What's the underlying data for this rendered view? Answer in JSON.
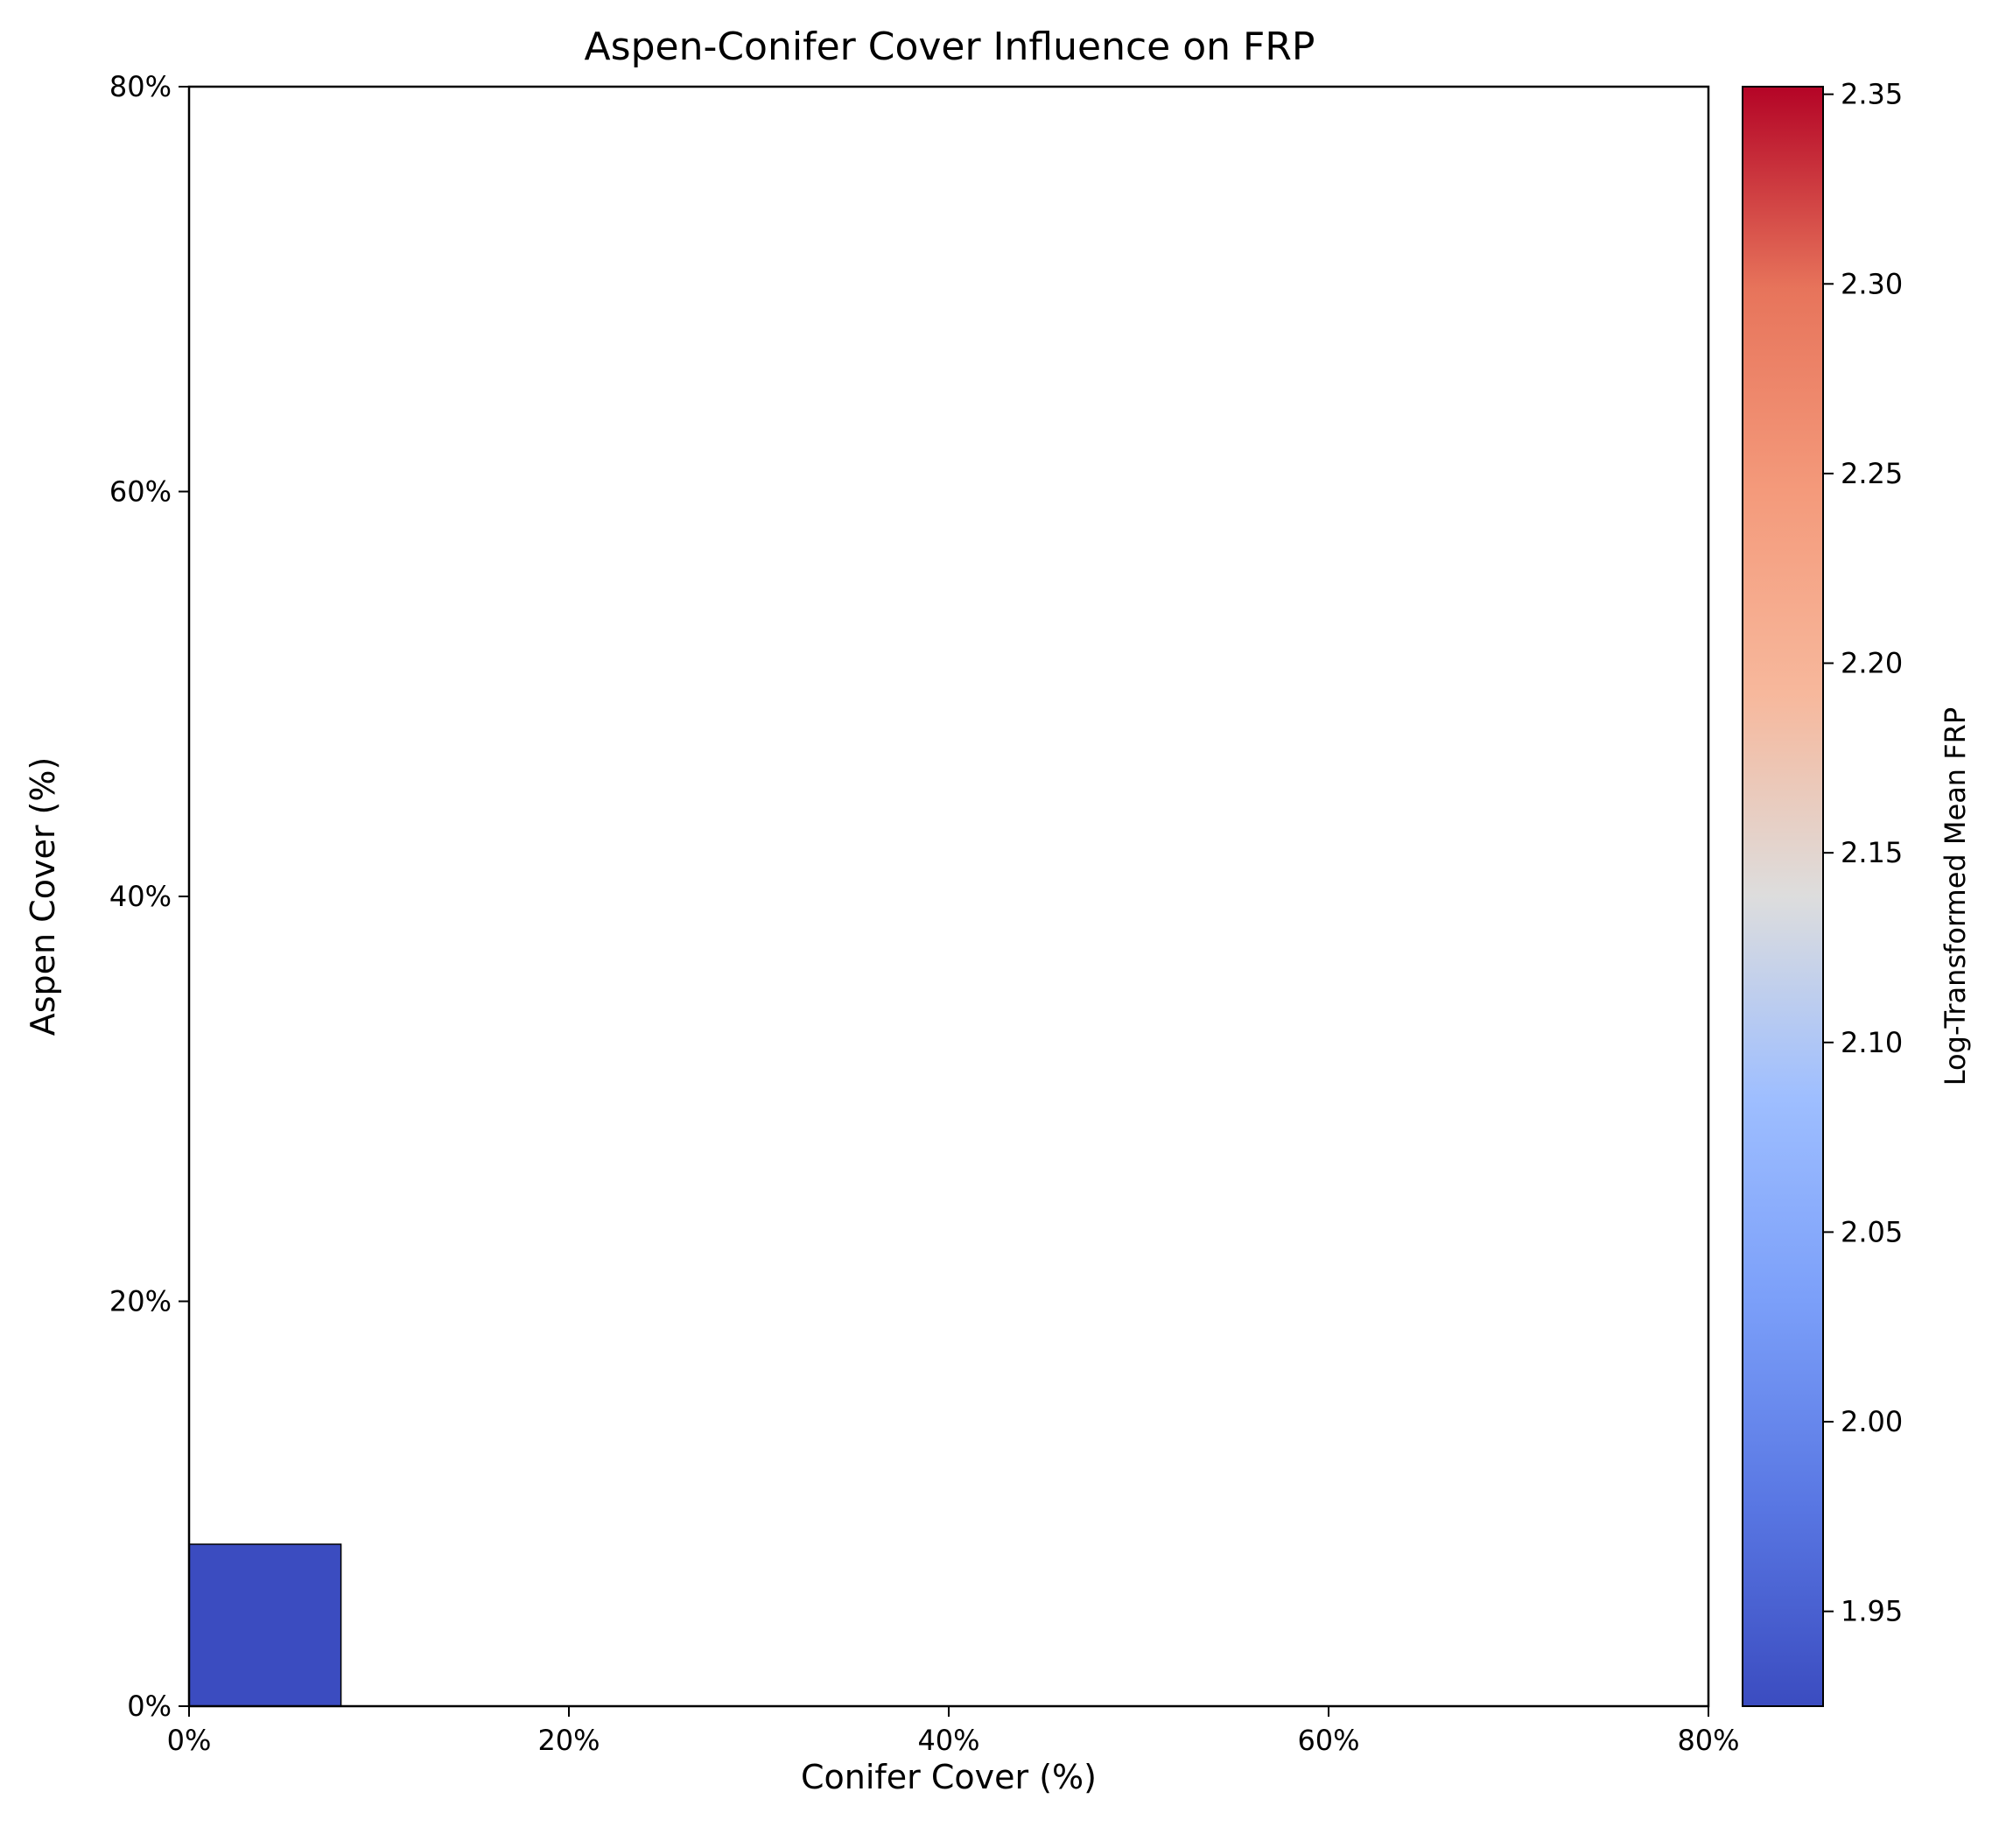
{
  "chart_data": {
    "type": "heatmap",
    "title": "Aspen-Conifer Cover Influence on FRP",
    "xlabel": "Conifer Cover (%)",
    "ylabel": "Aspen Cover (%)",
    "xlim": [
      0,
      80
    ],
    "ylim": [
      0,
      80
    ],
    "x_ticks": [
      "0%",
      "20%",
      "40%",
      "60%",
      "80%"
    ],
    "y_ticks": [
      "0%",
      "20%",
      "40%",
      "60%",
      "80%"
    ],
    "cells": [
      {
        "x_range": [
          0,
          8
        ],
        "y_range": [
          0,
          8
        ],
        "value": 1.925
      }
    ],
    "colorbar": {
      "label": "Log-Transformed Mean FRP",
      "colormap": "coolwarm",
      "range": [
        1.925,
        2.352
      ],
      "ticks": [
        "1.95",
        "2.00",
        "2.05",
        "2.10",
        "2.15",
        "2.20",
        "2.25",
        "2.30",
        "2.35"
      ]
    },
    "grid": false,
    "colors": {
      "coolwarm_low": "#3b4cc0",
      "coolwarm_mid": "#dddddd",
      "coolwarm_high": "#b40426"
    }
  }
}
